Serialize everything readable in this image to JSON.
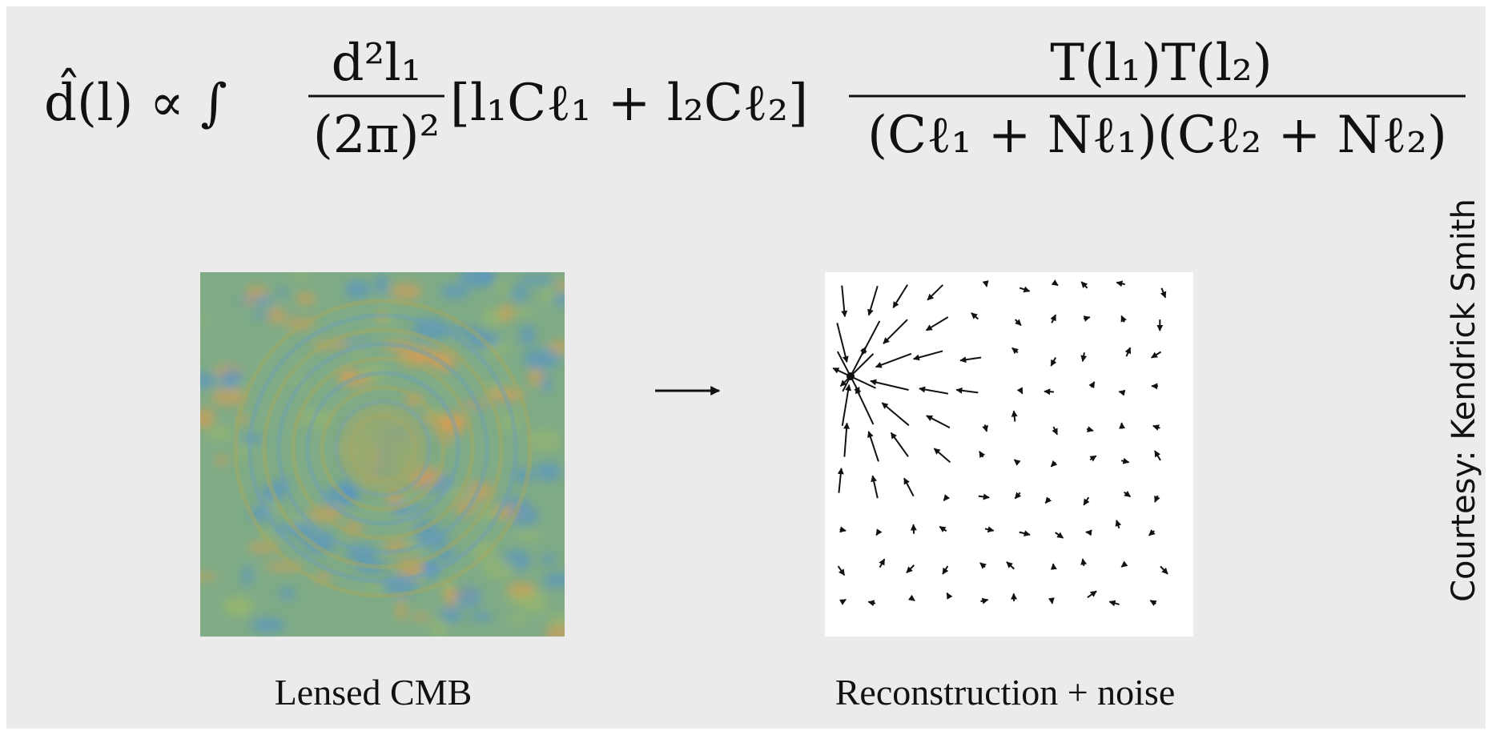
{
  "formula": {
    "lhs": "d̂(l) ∝ ∫",
    "fraction_1": {
      "numerator": "d²l₁",
      "denominator": "(2π)²"
    },
    "bracket": "[l₁Cℓ₁ + l₂Cℓ₂]",
    "fraction_2": {
      "numerator": "T(l₁)T(l₂)",
      "denominator": "(Cℓ₁ + Nℓ₁)(Cℓ₂ + Nℓ₂)"
    }
  },
  "panels": [
    {
      "caption": "Lensed CMB"
    },
    {
      "caption": "Reconstruction + noise"
    }
  ],
  "credit": "Courtesy: Kendrick Smith"
}
